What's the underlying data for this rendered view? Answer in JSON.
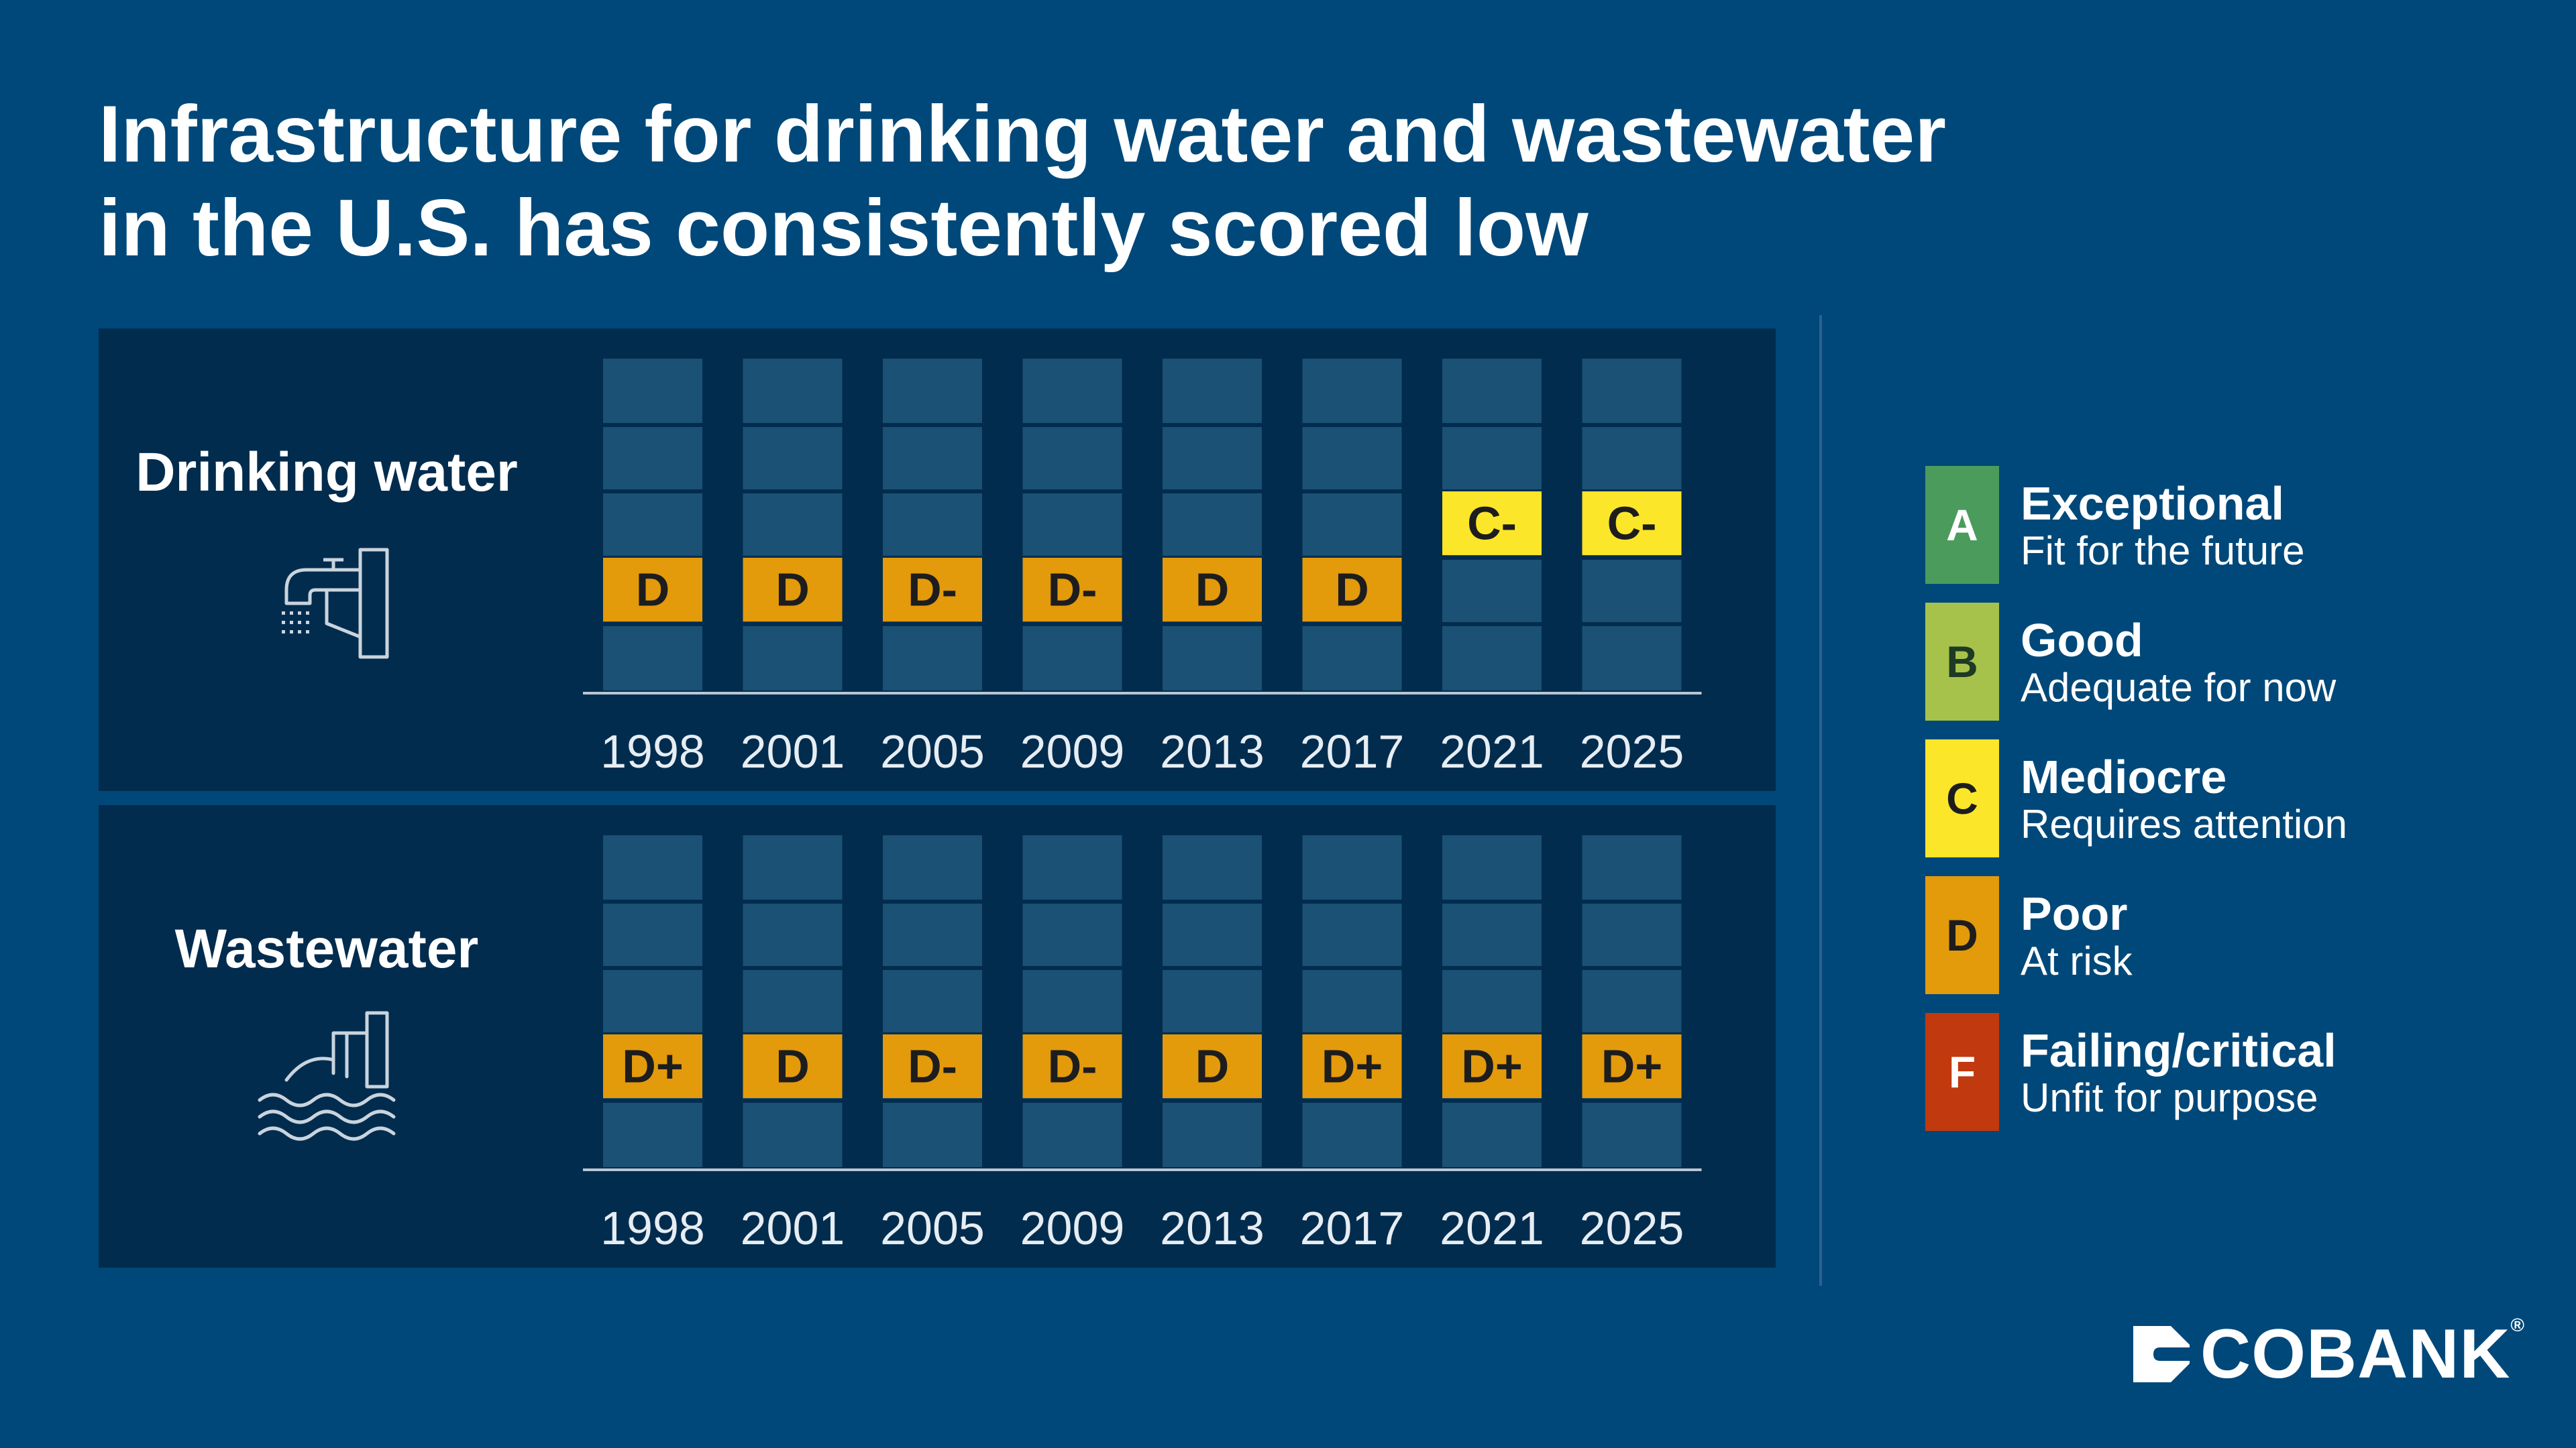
{
  "title_lines": [
    "Infrastructure for drinking water and wastewater",
    "in the U.S. has consistently scored low"
  ],
  "chart_data": [
    {
      "type": "table",
      "title": "Drinking water",
      "icon": "faucet-icon",
      "categories": [
        "1998",
        "2001",
        "2005",
        "2009",
        "2013",
        "2017",
        "2021",
        "2025"
      ],
      "grades": [
        "D",
        "D",
        "D-",
        "D-",
        "D",
        "D",
        "C-",
        "C-"
      ]
    },
    {
      "type": "table",
      "title": "Wastewater",
      "icon": "wastewater-outfall-icon",
      "categories": [
        "1998",
        "2001",
        "2005",
        "2009",
        "2013",
        "2017",
        "2021",
        "2025"
      ],
      "grades": [
        "D+",
        "D",
        "D-",
        "D-",
        "D",
        "D+",
        "D+",
        "D+"
      ]
    }
  ],
  "legend": [
    {
      "letter": "A",
      "name": "Exceptional",
      "desc": "Fit for the future",
      "color": "#4b9b5c",
      "text_color": "#ffffff"
    },
    {
      "letter": "B",
      "name": "Good",
      "desc": "Adequate for now",
      "color": "#a7c24a",
      "text_color": "#1d3a24"
    },
    {
      "letter": "C",
      "name": "Mediocre",
      "desc": "Requires attention",
      "color": "#fbe62a",
      "text_color": "#1d1d1d"
    },
    {
      "letter": "D",
      "name": "Poor",
      "desc": "At risk",
      "color": "#e39a0b",
      "text_color": "#1d1d1d"
    },
    {
      "letter": "F",
      "name": "Failing/critical",
      "desc": "Unfit for purpose",
      "color": "#c0390f",
      "text_color": "#ffffff"
    }
  ],
  "logo": {
    "text": "COBANK",
    "mark": "®"
  },
  "colors": {
    "background": "#004879",
    "panel": "#022c4e",
    "column": "#1a5174"
  }
}
